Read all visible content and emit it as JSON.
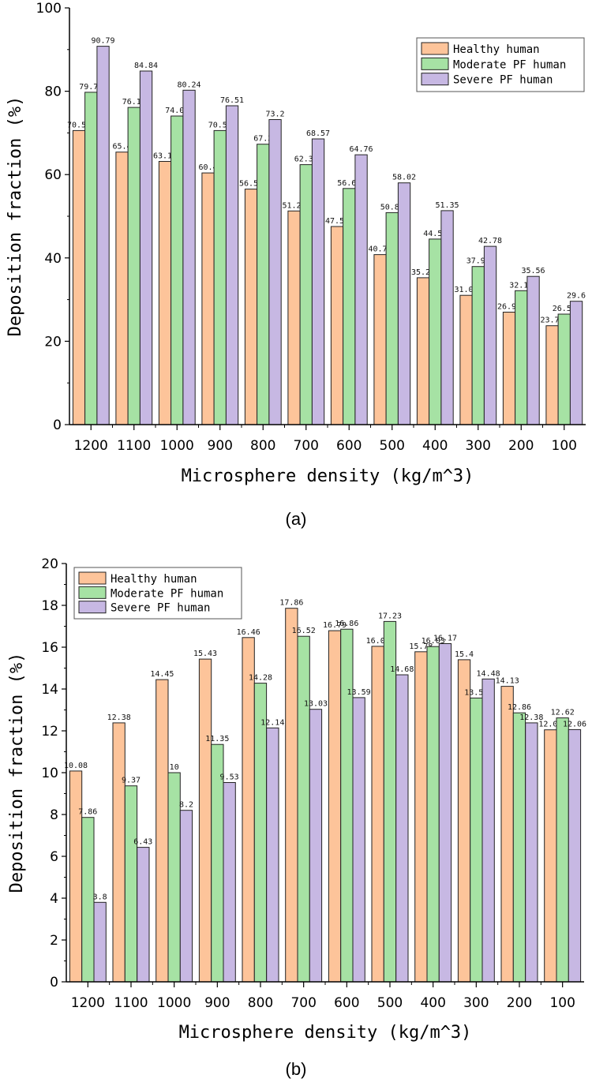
{
  "series_colors": [
    "#fdc49a",
    "#a6e2a4",
    "#c7b8e3"
  ],
  "chart_data": [
    {
      "type": "bar",
      "caption": "(a)",
      "categories": [
        "1200",
        "1100",
        "1000",
        "900",
        "800",
        "700",
        "600",
        "500",
        "400",
        "300",
        "200",
        "100"
      ],
      "series": [
        {
          "name": "Healthy human",
          "values": [
            70.56,
            65.4,
            63.17,
            60.4,
            56.51,
            51.27,
            47.54,
            40.79,
            35.24,
            31.03,
            26.98,
            23.73
          ]
        },
        {
          "name": "Moderate PF human",
          "values": [
            79.76,
            76.11,
            74.05,
            70.56,
            67.3,
            62.38,
            56.67,
            50.87,
            44.52,
            37.94,
            32.14,
            26.51
          ]
        },
        {
          "name": "Severe PF human",
          "values": [
            90.79,
            84.84,
            80.24,
            76.51,
            73.2,
            68.57,
            64.76,
            58.02,
            51.35,
            42.78,
            35.56,
            29.6
          ]
        }
      ],
      "xlabel": "Microsphere density (kg/m^3)",
      "ylabel": "Deposition fraction (%)",
      "ylim": [
        0,
        100
      ],
      "yticks": [
        0,
        20,
        40,
        60,
        80,
        100
      ],
      "legend": "top-right"
    },
    {
      "type": "bar",
      "caption": "(b)",
      "categories": [
        "1200",
        "1100",
        "1000",
        "900",
        "800",
        "700",
        "600",
        "500",
        "400",
        "300",
        "200",
        "100"
      ],
      "series": [
        {
          "name": "Healthy human",
          "values": [
            10.08,
            12.38,
            14.45,
            15.43,
            16.46,
            17.86,
            16.79,
            16.04,
            15.78,
            15.4,
            14.13,
            12.05
          ]
        },
        {
          "name": "Moderate PF human",
          "values": [
            7.86,
            9.37,
            10,
            11.35,
            14.28,
            16.52,
            16.86,
            17.23,
            16.03,
            13.57,
            12.86,
            12.62
          ]
        },
        {
          "name": "Severe PF human",
          "values": [
            3.8,
            6.43,
            8.2,
            9.53,
            12.14,
            13.03,
            13.59,
            14.68,
            16.17,
            14.48,
            12.38,
            12.06
          ]
        }
      ],
      "xlabel": "Microsphere density (kg/m^3)",
      "ylabel": "Deposition fraction (%)",
      "ylim": [
        0,
        20
      ],
      "yticks": [
        0,
        2,
        4,
        6,
        8,
        10,
        12,
        14,
        16,
        18,
        20
      ],
      "legend": "top-left"
    }
  ]
}
